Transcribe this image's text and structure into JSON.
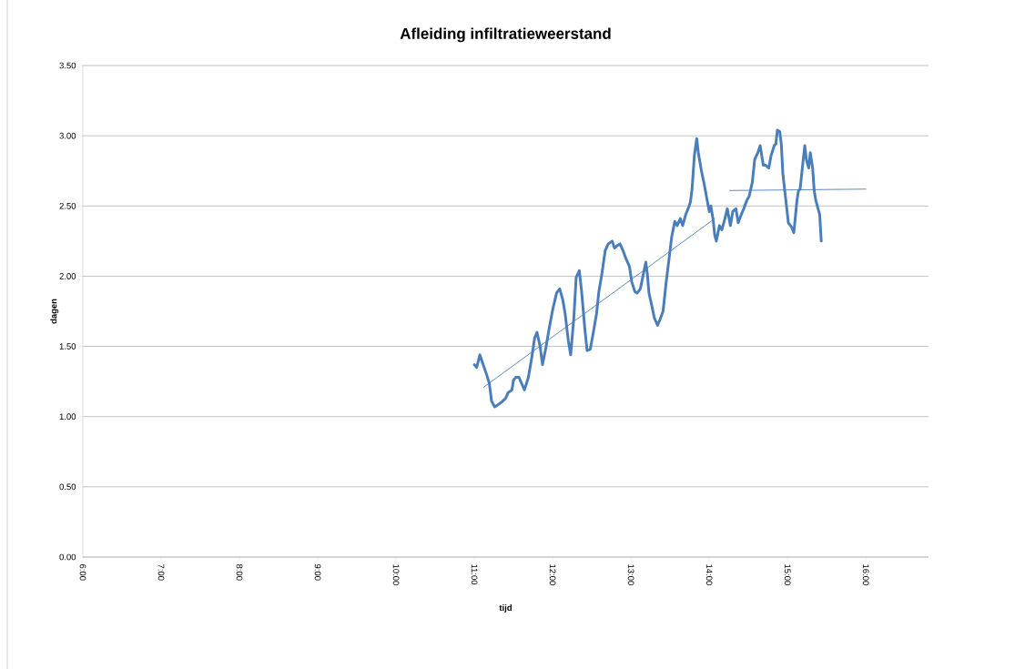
{
  "chart_data": {
    "type": "line",
    "title": "Afleiding infiltratieweerstand",
    "xlabel": "tijd",
    "ylabel": "dagen",
    "xlim": [
      6,
      16.8
    ],
    "ylim": [
      0,
      3.5
    ],
    "xticks": [
      {
        "value": 6,
        "label": "6:00"
      },
      {
        "value": 7,
        "label": "7:00"
      },
      {
        "value": 8,
        "label": "8:00"
      },
      {
        "value": 9,
        "label": "9:00"
      },
      {
        "value": 10,
        "label": "10:00"
      },
      {
        "value": 11,
        "label": "11:00"
      },
      {
        "value": 12,
        "label": "12:00"
      },
      {
        "value": 13,
        "label": "13:00"
      },
      {
        "value": 14,
        "label": "14:00"
      },
      {
        "value": 15,
        "label": "15:00"
      },
      {
        "value": 16,
        "label": "16:00"
      }
    ],
    "yticks": [
      {
        "value": 0,
        "label": "0.00"
      },
      {
        "value": 0.5,
        "label": "0.50"
      },
      {
        "value": 1,
        "label": "1.00"
      },
      {
        "value": 1.5,
        "label": "1.50"
      },
      {
        "value": 2,
        "label": "2.00"
      },
      {
        "value": 2.5,
        "label": "2.50"
      },
      {
        "value": 3,
        "label": "3.00"
      },
      {
        "value": 3.5,
        "label": "3.50"
      }
    ],
    "grid": "y",
    "marker": "none",
    "line_style": "solid",
    "x": [
      11.0,
      11.03,
      11.07,
      11.1,
      11.15,
      11.19,
      11.22,
      11.26,
      11.29,
      11.34,
      11.4,
      11.43,
      11.48,
      11.5,
      11.53,
      11.57,
      11.6,
      11.64,
      11.69,
      11.73,
      11.77,
      11.8,
      11.84,
      11.87,
      11.91,
      11.95,
      12.0,
      12.05,
      12.09,
      12.13,
      12.16,
      12.2,
      12.23,
      12.27,
      12.3,
      12.34,
      12.37,
      12.41,
      12.44,
      12.48,
      12.51,
      12.56,
      12.59,
      12.63,
      12.67,
      12.71,
      12.76,
      12.79,
      12.83,
      12.86,
      12.9,
      12.94,
      12.98,
      13.01,
      13.05,
      13.08,
      13.12,
      13.16,
      13.19,
      13.21,
      13.23,
      13.27,
      13.3,
      13.34,
      13.37,
      13.41,
      13.45,
      13.49,
      13.52,
      13.56,
      13.59,
      13.63,
      13.66,
      13.7,
      13.73,
      13.76,
      13.78,
      13.81,
      13.84,
      13.86,
      13.9,
      13.93,
      13.97,
      14.0,
      14.02,
      14.05,
      14.07,
      14.09,
      14.13,
      14.16,
      14.2,
      14.23,
      14.27,
      14.3,
      14.34,
      14.37,
      14.41,
      14.44,
      14.48,
      14.51,
      14.55,
      14.58,
      14.62,
      14.65,
      14.69,
      14.72,
      14.76,
      14.79,
      14.83,
      14.85,
      14.87,
      14.9,
      14.92,
      14.94,
      14.98,
      15.01,
      15.05,
      15.08,
      15.12,
      15.14,
      15.16,
      15.2,
      15.22,
      15.24,
      15.27,
      15.29,
      15.32,
      15.34,
      15.36,
      15.39,
      15.41,
      15.43
    ],
    "series": [
      {
        "color": "#4a7ebb",
        "values": [
          1.37,
          1.35,
          1.44,
          1.39,
          1.31,
          1.24,
          1.11,
          1.07,
          1.08,
          1.1,
          1.13,
          1.17,
          1.19,
          1.26,
          1.28,
          1.28,
          1.24,
          1.19,
          1.28,
          1.41,
          1.56,
          1.6,
          1.5,
          1.37,
          1.48,
          1.61,
          1.76,
          1.88,
          1.91,
          1.83,
          1.73,
          1.54,
          1.44,
          1.7,
          1.99,
          2.04,
          1.89,
          1.63,
          1.47,
          1.48,
          1.57,
          1.73,
          1.89,
          2.02,
          2.18,
          2.23,
          2.25,
          2.2,
          2.22,
          2.23,
          2.18,
          2.12,
          2.07,
          1.96,
          1.89,
          1.88,
          1.91,
          2.02,
          2.1,
          2.01,
          1.88,
          1.78,
          1.7,
          1.65,
          1.69,
          1.75,
          1.96,
          2.14,
          2.28,
          2.39,
          2.36,
          2.41,
          2.36,
          2.44,
          2.48,
          2.53,
          2.62,
          2.86,
          2.98,
          2.88,
          2.75,
          2.67,
          2.55,
          2.46,
          2.5,
          2.4,
          2.29,
          2.25,
          2.36,
          2.33,
          2.41,
          2.48,
          2.36,
          2.46,
          2.48,
          2.38,
          2.44,
          2.48,
          2.54,
          2.57,
          2.67,
          2.83,
          2.88,
          2.93,
          2.79,
          2.79,
          2.77,
          2.86,
          2.93,
          2.94,
          3.04,
          3.03,
          2.94,
          2.73,
          2.53,
          2.38,
          2.35,
          2.31,
          2.54,
          2.61,
          2.62,
          2.83,
          2.93,
          2.83,
          2.77,
          2.88,
          2.77,
          2.61,
          2.54,
          2.48,
          2.44,
          2.25
        ]
      },
      {
        "color": "#4a7ebb",
        "x": [
          11.12,
          14.07
        ],
        "values": [
          1.21,
          2.41
        ]
      },
      {
        "color": "#4a7ebb",
        "x": [
          14.26,
          16.0
        ],
        "values": [
          2.61,
          2.62
        ]
      }
    ]
  }
}
